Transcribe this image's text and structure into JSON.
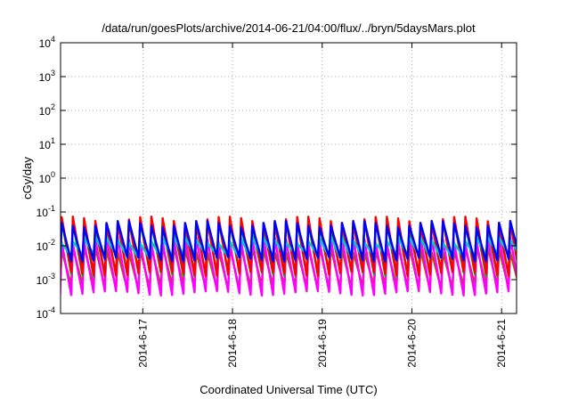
{
  "chart_data": {
    "type": "line",
    "title": "/data/run/goesPlots/archive/2014-06-21/04:00/flux/../bryn/5daysMars.plot",
    "xlabel": "Coordinated Universal Time (UTC)",
    "ylabel": "cGy/day",
    "x_scale": "time",
    "y_scale": "log",
    "xlim": [
      "2014-06-16T02:00",
      "2014-06-21T04:00"
    ],
    "ylim": [
      0.0001,
      10000
    ],
    "grid": true,
    "legend": "none",
    "x_ticks": [
      {
        "x": "2014-06-17T00:00",
        "label": "2014-6-17"
      },
      {
        "x": "2014-06-18T00:00",
        "label": "2014-6-18"
      },
      {
        "x": "2014-06-19T00:00",
        "label": "2014-6-19"
      },
      {
        "x": "2014-06-20T00:00",
        "label": "2014-6-20"
      },
      {
        "x": "2014-06-21T00:00",
        "label": "2014-6-21"
      }
    ],
    "y_ticks": [
      {
        "y": 0.0001,
        "mantissa": "10",
        "exp": "-4"
      },
      {
        "y": 0.001,
        "mantissa": "10",
        "exp": "-3"
      },
      {
        "y": 0.01,
        "mantissa": "10",
        "exp": "-2"
      },
      {
        "y": 0.1,
        "mantissa": "10",
        "exp": "-1"
      },
      {
        "y": 1,
        "mantissa": "10",
        "exp": "0"
      },
      {
        "y": 10,
        "mantissa": "10",
        "exp": "1"
      },
      {
        "y": 100,
        "mantissa": "10",
        "exp": "2"
      },
      {
        "y": 1000,
        "mantissa": "10",
        "exp": "3"
      },
      {
        "y": 10000,
        "mantissa": "10",
        "exp": "4"
      }
    ],
    "cycle_hours": 3,
    "series": [
      {
        "color": "#ff0000",
        "peak_cGy_day": 0.06,
        "trough_cGy_day": 0.0015
      },
      {
        "color": "#00aa00",
        "peak_cGy_day": 0.045,
        "trough_cGy_day": 0.0015
      },
      {
        "color": "#0000ff",
        "peak_cGy_day": 0.045,
        "trough_cGy_day": 0.004
      },
      {
        "color": "#ff00ff",
        "peak_cGy_day": 0.015,
        "trough_cGy_day": 0.0004
      },
      {
        "color": "#00cccc",
        "peak_cGy_day": 0.015,
        "trough_cGy_day": 0.005
      },
      {
        "color": "#aa5500",
        "peak_cGy_day": 0.008,
        "trough_cGy_day": 0.0006
      }
    ]
  }
}
